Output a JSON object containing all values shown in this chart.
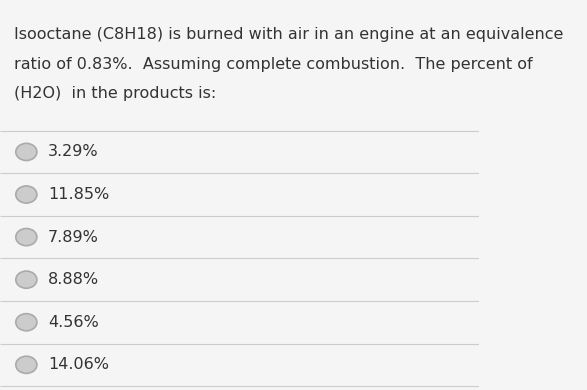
{
  "question_lines": [
    "Isooctane (C8H18) is burned with air in an engine at an equivalence",
    "ratio of 0.83%.  Assuming complete combustion.  The percent of",
    "(H2O)  in the products is:"
  ],
  "options": [
    "3.29%",
    "11.85%",
    "7.89%",
    "8.88%",
    "4.56%",
    "14.06%"
  ],
  "bg_color": "#f5f5f5",
  "text_color": "#333333",
  "radio_outer_color": "#aaaaaa",
  "radio_inner_color": "#cccccc",
  "divider_color": "#cccccc",
  "question_fontsize": 11.5,
  "option_fontsize": 11.5
}
